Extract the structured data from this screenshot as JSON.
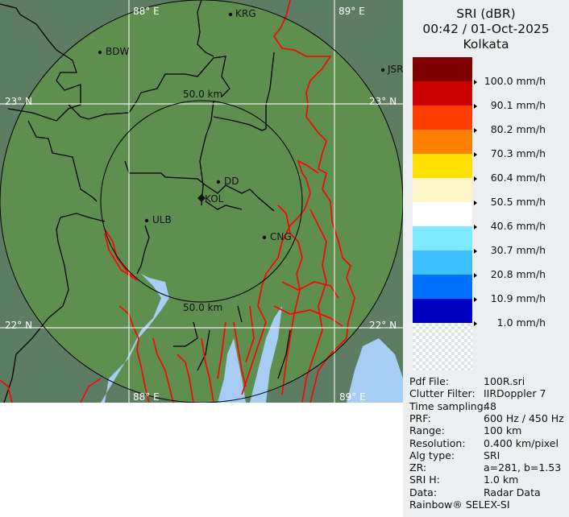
{
  "header": {
    "product": "SRI (dBR)",
    "datetime": "00:42 / 01-Oct-2025",
    "site": "Kolkata"
  },
  "legend": {
    "colors": [
      "#7e0000",
      "#cc0000",
      "#ff3c00",
      "#ff7f00",
      "#ffe000",
      "#fff6c8",
      "#ffffff",
      "#7feaff",
      "#3cbfff",
      "#0070ff",
      "#0000c0"
    ],
    "no_data_pattern": "checker",
    "labels": [
      "100.0 mm/h",
      "90.1 mm/h",
      "80.2 mm/h",
      "70.3 mm/h",
      "60.4 mm/h",
      "50.5 mm/h",
      "40.6 mm/h",
      "30.7 mm/h",
      "20.8 mm/h",
      "10.9 mm/h",
      "1.0 mm/h"
    ]
  },
  "info": [
    {
      "key": "Pdf File:",
      "value": "100R.sri"
    },
    {
      "key": "Clutter Filter:",
      "value": "IIRDoppler 7"
    },
    {
      "key": "Time sampling:",
      "value": "48"
    },
    {
      "key": "PRF:",
      "value": "600 Hz / 450 Hz"
    },
    {
      "key": "Range:",
      "value": "100 km"
    },
    {
      "key": "Resolution:",
      "value": "0.400 km/pixel"
    },
    {
      "key": "Alg type:",
      "value": "SRI"
    },
    {
      "key": "ZR:",
      "value": "a=281, b=1.53"
    },
    {
      "key": "SRI H:",
      "value": "1.0 km"
    },
    {
      "key": "Data:",
      "value": "Radar Data"
    }
  ],
  "footer": "Rainbow® SELEX-SI",
  "map": {
    "grid_labels": {
      "lon_88_top": "88° E",
      "lon_89_top": "89° E",
      "lon_88_bottom": "88° E",
      "lon_89_bottom": "89° E",
      "lat_23_left": "23° N",
      "lat_23_right": "23° N",
      "lat_22_left": "22° N",
      "lat_22_right": "22° N"
    },
    "range_rings": {
      "inner_top": "50.0 km",
      "inner_bottom": "50.0 km"
    },
    "places": [
      {
        "name": "KRG"
      },
      {
        "name": "BDW"
      },
      {
        "name": "JSR"
      },
      {
        "name": "DD"
      },
      {
        "name": "KOL"
      },
      {
        "name": "ULB"
      },
      {
        "name": "CNG"
      }
    ],
    "colors": {
      "land": "#5f8f4f",
      "outside": "#5d7d62",
      "water": "#a7cdf5",
      "border": "#ff0000",
      "district": "#000000",
      "grid": "#ffffff"
    }
  }
}
